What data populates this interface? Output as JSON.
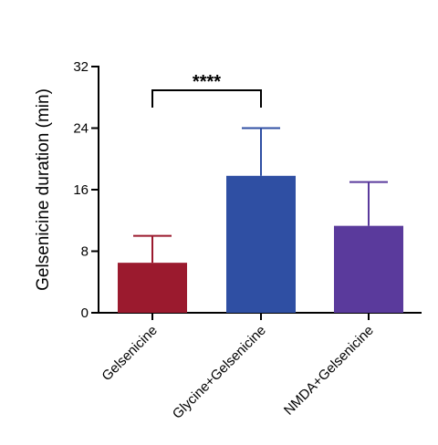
{
  "chart_data": {
    "type": "bar",
    "title": "",
    "xlabel": "",
    "ylabel": "Gelsenicine duration (min)",
    "ylim": [
      0,
      32
    ],
    "yticks": [
      0,
      8,
      16,
      24,
      32
    ],
    "categories": [
      "Gelsenicine",
      "Glycine+Gelsenicine",
      "NMDA+Gelsenicine"
    ],
    "values": [
      6.5,
      17.8,
      11.3
    ],
    "error_upper": [
      10.0,
      24.0,
      17.0
    ],
    "colors": [
      "#9b1a2e",
      "#2f4fa3",
      "#5a3a9c"
    ],
    "grid": false,
    "annotations": [
      {
        "type": "significance",
        "from": "Gelsenicine",
        "to": "Glycine+Gelsenicine",
        "label": "****"
      }
    ]
  }
}
